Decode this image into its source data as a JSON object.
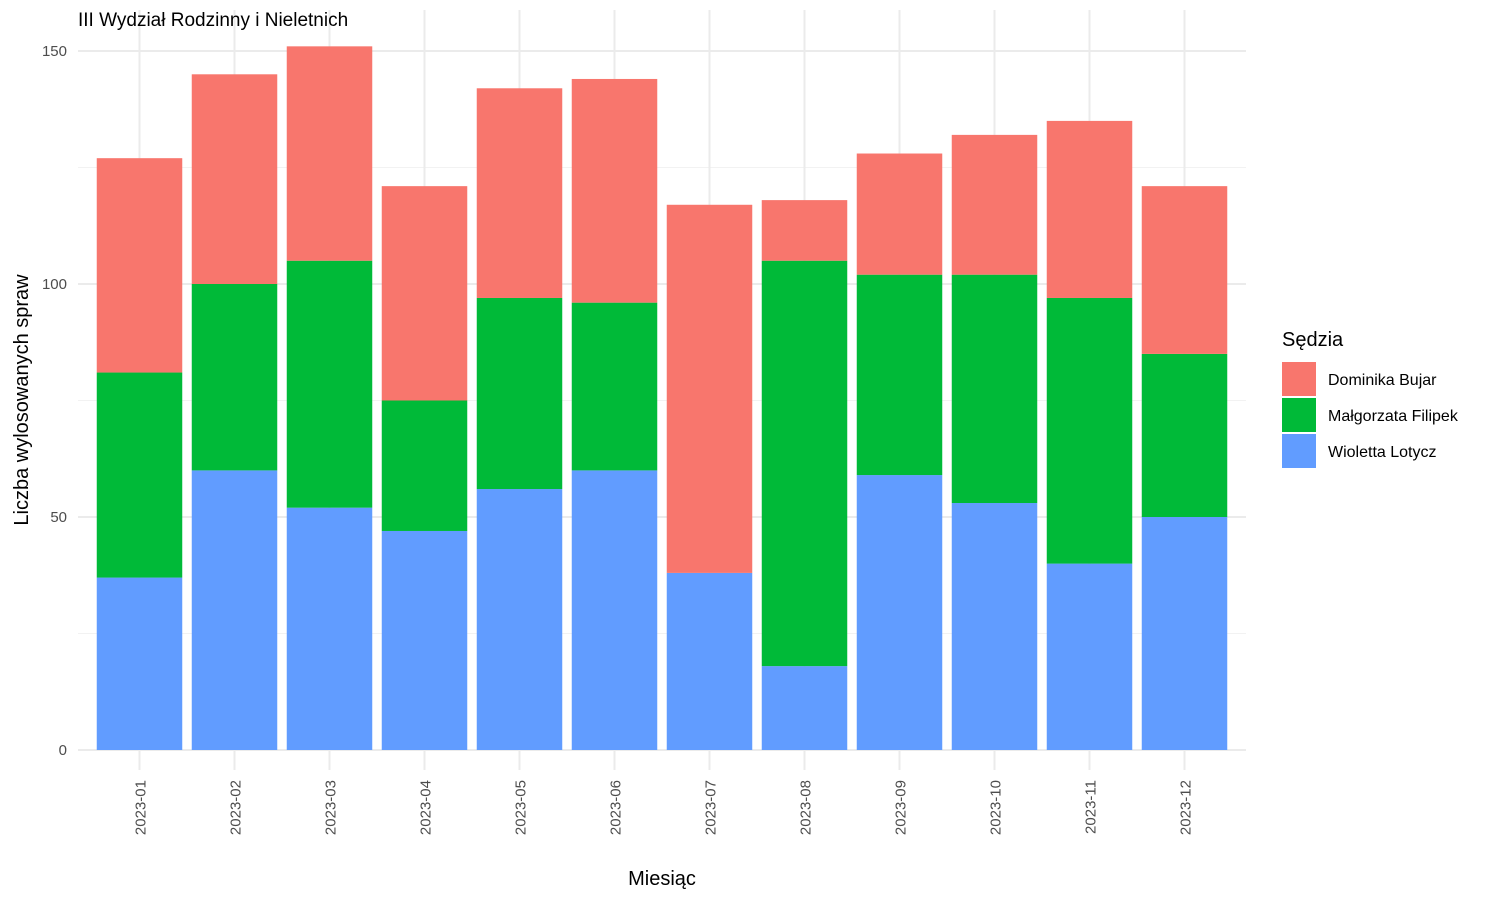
{
  "chart_data": {
    "type": "bar",
    "stacked": true,
    "title": "III Wydział Rodzinny i Nieletnich",
    "xlabel": "Miesiąc",
    "ylabel": "Liczba wylosowanych spraw",
    "ylim": [
      0,
      150
    ],
    "yticks": [
      0,
      50,
      100,
      150
    ],
    "grid": true,
    "legend_title": "Sędzia",
    "legend_position": "right",
    "categories": [
      "2023-01",
      "2023-02",
      "2023-03",
      "2023-04",
      "2023-05",
      "2023-06",
      "2023-07",
      "2023-08",
      "2023-09",
      "2023-10",
      "2023-11",
      "2023-12"
    ],
    "series": [
      {
        "name": "Wioletta Lotycz",
        "color": "#619CFF",
        "values": [
          37,
          60,
          52,
          47,
          56,
          60,
          38,
          18,
          59,
          53,
          40,
          50
        ]
      },
      {
        "name": "Małgorzata Filipek",
        "color": "#00BA38",
        "values": [
          44,
          40,
          53,
          28,
          41,
          36,
          0,
          87,
          43,
          49,
          57,
          35
        ]
      },
      {
        "name": "Dominika Bujar",
        "color": "#F8766D",
        "values": [
          46,
          45,
          46,
          46,
          45,
          48,
          79,
          13,
          26,
          30,
          38,
          36
        ]
      }
    ],
    "legend_order": [
      "Dominika Bujar",
      "Małgorzata Filipek",
      "Wioletta Lotycz"
    ]
  }
}
